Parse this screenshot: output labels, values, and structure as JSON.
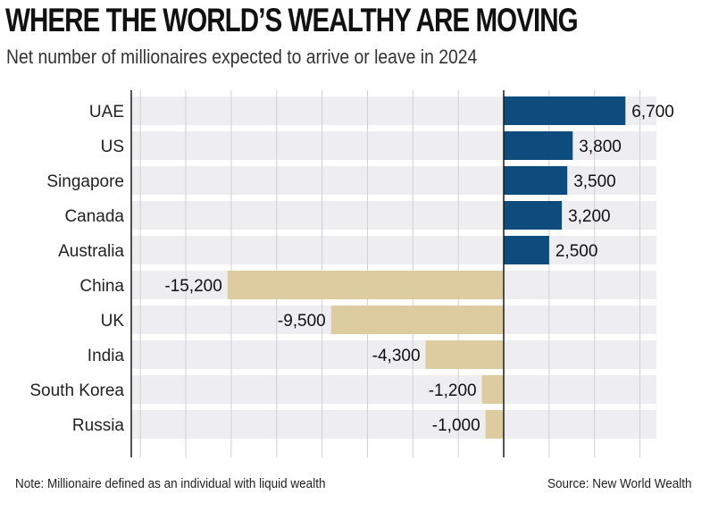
{
  "chart_data": {
    "type": "bar",
    "orientation": "horizontal",
    "title": "WHERE THE WORLD’S WEALTHY ARE MOVING",
    "subtitle": "Net number of millionaires expected to arrive or leave in 2024",
    "categories": [
      "UAE",
      "US",
      "Singapore",
      "Canada",
      "Australia",
      "China",
      "UK",
      "India",
      "South Korea",
      "Russia"
    ],
    "values": [
      6700,
      3800,
      3500,
      3200,
      2500,
      -15200,
      -9500,
      -4300,
      -1200,
      -1000
    ],
    "value_labels": [
      "6,700",
      "3,800",
      "3,500",
      "3,200",
      "2,500",
      "-15,200",
      "-9,500",
      "-4,300",
      "-1,200",
      "-1,000"
    ],
    "xlim": [
      -20500,
      8200
    ],
    "grid": true,
    "legend": "none",
    "colors": {
      "positive": "#0f4c7e",
      "negative": "#ddcc9f",
      "row_background": "#eeeef1",
      "gridline": "#d0d0d4",
      "axis": "#1a1a1a"
    }
  },
  "footer": {
    "note": "Note: Millionaire defined as an individual with liquid wealth",
    "source": "Source: New World Wealth"
  }
}
